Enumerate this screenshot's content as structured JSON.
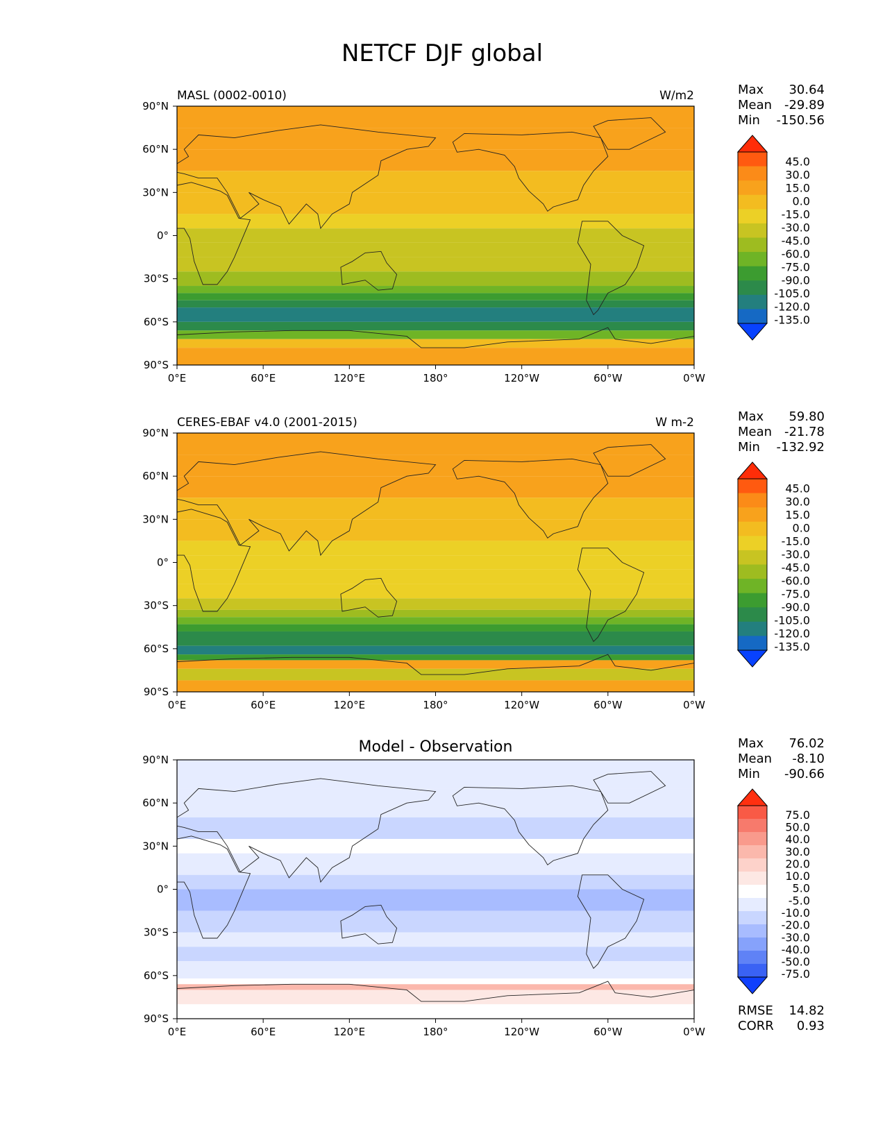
{
  "figure": {
    "title": "NETCF DJF global"
  },
  "panels": [
    {
      "left_title": "MASL (0002-0010)",
      "center_title": "",
      "right_title": "W/m2",
      "stats": [
        {
          "label": "Max",
          "value": "30.64"
        },
        {
          "label": "Mean",
          "value": "-29.89"
        },
        {
          "label": "Min",
          "value": "-150.56"
        }
      ],
      "extra_stats": [],
      "colorbar": {
        "ticks": [
          "45.0",
          "30.0",
          "15.0",
          "0.0",
          "-15.0",
          "-30.0",
          "-45.0",
          "-60.0",
          "-75.0",
          "-90.0",
          "-105.0",
          "-120.0",
          "-135.0"
        ],
        "colors": [
          "#ff2d08",
          "#ff5a10",
          "#fb8b18",
          "#f8a21c",
          "#f3bc20",
          "#ecd026",
          "#c8c422",
          "#9ebc20",
          "#6fb426",
          "#3c9c30",
          "#2c8a4a",
          "#237f7e",
          "#1569c4",
          "#0842fe"
        ]
      }
    },
    {
      "left_title": "CERES-EBAF v4.0 (2001-2015)",
      "center_title": "",
      "right_title": "W m-2",
      "stats": [
        {
          "label": "Max",
          "value": "59.80"
        },
        {
          "label": "Mean",
          "value": "-21.78"
        },
        {
          "label": "Min",
          "value": "-132.92"
        }
      ],
      "extra_stats": [],
      "colorbar": {
        "ticks": [
          "45.0",
          "30.0",
          "15.0",
          "0.0",
          "-15.0",
          "-30.0",
          "-45.0",
          "-60.0",
          "-75.0",
          "-90.0",
          "-105.0",
          "-120.0",
          "-135.0"
        ],
        "colors": [
          "#ff2d08",
          "#ff5a10",
          "#fb8b18",
          "#f8a21c",
          "#f3bc20",
          "#ecd026",
          "#c8c422",
          "#9ebc20",
          "#6fb426",
          "#3c9c30",
          "#2c8a4a",
          "#237f7e",
          "#1569c4",
          "#0842fe"
        ]
      }
    },
    {
      "left_title": "",
      "center_title": "Model - Observation",
      "right_title": "",
      "stats": [
        {
          "label": "Max",
          "value": "76.02"
        },
        {
          "label": "Mean",
          "value": "-8.10"
        },
        {
          "label": "Min",
          "value": "-90.66"
        }
      ],
      "extra_stats": [
        {
          "label": "RMSE",
          "value": "14.82"
        },
        {
          "label": "CORR",
          "value": "0.93"
        }
      ],
      "colorbar": {
        "ticks": [
          "75.0",
          "50.0",
          "40.0",
          "30.0",
          "20.0",
          "10.0",
          "5.0",
          "-5.0",
          "-10.0",
          "-20.0",
          "-30.0",
          "-40.0",
          "-50.0",
          "-75.0"
        ],
        "colors": [
          "#ff3010",
          "#f95a46",
          "#f77a6c",
          "#f99a8c",
          "#fbb8ac",
          "#fdd2ca",
          "#fde8e4",
          "#ffffff",
          "#e6ecff",
          "#c9d6ff",
          "#a8bcff",
          "#86a2fb",
          "#5f82f6",
          "#3a62f4",
          "#1040fc"
        ]
      }
    }
  ],
  "chart_data": [
    {
      "type": "heatmap",
      "title": "MASL (0002-0010)",
      "units": "W/m2",
      "x_ticks": [
        "0°E",
        "60°E",
        "120°E",
        "180°",
        "120°W",
        "60°W",
        "0°W"
      ],
      "y_ticks": [
        "90°N",
        "60°N",
        "30°N",
        "0°",
        "30°S",
        "60°S",
        "90°S"
      ],
      "xlim": [
        0,
        360
      ],
      "ylim": [
        -90,
        90
      ],
      "levels": [
        -135,
        -120,
        -105,
        -90,
        -75,
        -60,
        -45,
        -30,
        -15,
        0,
        15,
        30,
        45
      ],
      "stats": {
        "max": 30.64,
        "mean": -29.89,
        "min": -150.56
      }
    },
    {
      "type": "heatmap",
      "title": "CERES-EBAF v4.0 (2001-2015)",
      "units": "W m-2",
      "x_ticks": [
        "0°E",
        "60°E",
        "120°E",
        "180°",
        "120°W",
        "60°W",
        "0°W"
      ],
      "y_ticks": [
        "90°N",
        "60°N",
        "30°N",
        "0°",
        "30°S",
        "60°S",
        "90°S"
      ],
      "xlim": [
        0,
        360
      ],
      "ylim": [
        -90,
        90
      ],
      "levels": [
        -135,
        -120,
        -105,
        -90,
        -75,
        -60,
        -45,
        -30,
        -15,
        0,
        15,
        30,
        45
      ],
      "stats": {
        "max": 59.8,
        "mean": -21.78,
        "min": -132.92
      }
    },
    {
      "type": "heatmap",
      "title": "Model - Observation",
      "units": "",
      "x_ticks": [
        "0°E",
        "60°E",
        "120°E",
        "180°",
        "120°W",
        "60°W",
        "0°W"
      ],
      "y_ticks": [
        "90°N",
        "60°N",
        "30°N",
        "0°",
        "30°S",
        "60°S",
        "90°S"
      ],
      "xlim": [
        0,
        360
      ],
      "ylim": [
        -90,
        90
      ],
      "levels": [
        -75,
        -50,
        -40,
        -30,
        -20,
        -10,
        -5,
        5,
        10,
        20,
        30,
        40,
        50,
        75
      ],
      "stats": {
        "max": 76.02,
        "mean": -8.1,
        "min": -90.66,
        "rmse": 14.82,
        "corr": 0.93
      }
    }
  ]
}
